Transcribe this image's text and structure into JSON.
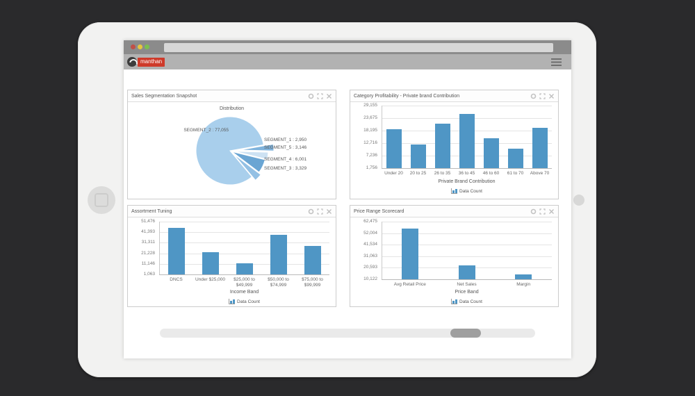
{
  "browser": {
    "logo": "manthan"
  },
  "panels": [
    {
      "title": "Sales Segmentation Snapshot"
    },
    {
      "title": "Category Profitability - Private brand Contribution"
    },
    {
      "title": "Assortment Tuning"
    },
    {
      "title": "Price Range Scorecard"
    }
  ],
  "chart_data": [
    {
      "type": "pie",
      "title": "Distribution",
      "segments": [
        {
          "label": "SEGMENT_2",
          "value": 77055,
          "display": "77,055",
          "color": "#a9cfec"
        },
        {
          "label": "SEGMENT_1",
          "value": 2950,
          "display": "2,950",
          "color": "#7fb3dc"
        },
        {
          "label": "SEGMENT_5",
          "value": 3146,
          "display": "3,146",
          "color": "#cde2f3"
        },
        {
          "label": "SEGMENT_4",
          "value": 6001,
          "display": "6,001",
          "color": "#6aa5d3"
        },
        {
          "label": "SEGMENT_3",
          "value": 3329,
          "display": "3,329",
          "color": "#93c0e4"
        }
      ]
    },
    {
      "type": "bar",
      "categories": [
        "Under 20",
        "20 to 25",
        "26 to 35",
        "36 to 45",
        "46 to 60",
        "61 to 70",
        "Above 70"
      ],
      "values": [
        18800,
        12100,
        21200,
        25500,
        14850,
        10300,
        19400
      ],
      "yticks": [
        "29,155",
        "23,675",
        "18,195",
        "12,716",
        "7,236",
        "1,756"
      ],
      "ymin": 1756,
      "ymax": 29155,
      "xlabel": "Private Brand Contribution",
      "legend": "Data Count",
      "bar_color": "#4f96c5"
    },
    {
      "type": "bar",
      "categories": [
        "DNCS",
        "Under $25,000",
        "$25,000 to\n$49,999",
        "$50,000 to\n$74,999",
        "$75,000 to\n$99,999"
      ],
      "values": [
        45500,
        22300,
        11700,
        38900,
        28300
      ],
      "yticks": [
        "51,476",
        "41,393",
        "31,311",
        "21,228",
        "11,146",
        "1,063"
      ],
      "ymin": 1063,
      "ymax": 51476,
      "xlabel": "Income Band",
      "legend": "Data Count",
      "bar_color": "#4f96c5"
    },
    {
      "type": "bar",
      "categories": [
        "Avg Retail Price",
        "Net Sales",
        "Margin"
      ],
      "values": [
        56200,
        22700,
        14500
      ],
      "yticks": [
        "62,475",
        "52,004",
        "41,534",
        "31,063",
        "20,593",
        "10,122"
      ],
      "ymin": 10122,
      "ymax": 62475,
      "xlabel": "Price Band",
      "legend": "Data Count",
      "bar_color": "#4f96c5"
    }
  ]
}
